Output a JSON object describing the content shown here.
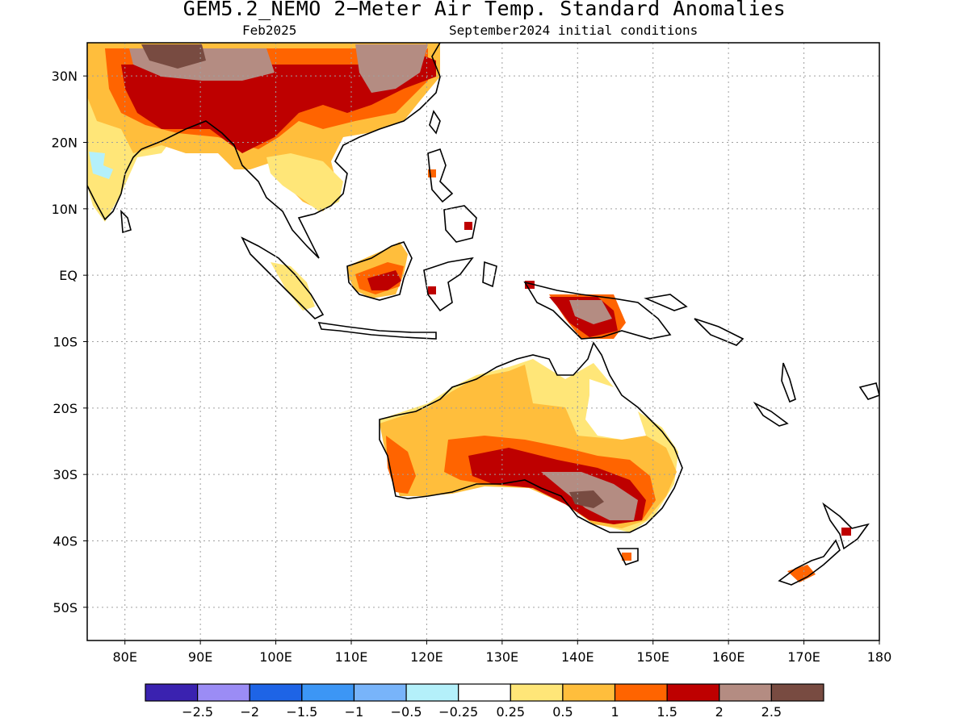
{
  "title": "GEM5.2_NEMO 2−Meter Air Temp. Standard Anomalies",
  "subtitle_left": "Feb2025",
  "subtitle_right": "September2024 initial conditions",
  "map": {
    "lon_range": [
      75,
      180
    ],
    "lat_range": [
      -55,
      35
    ],
    "grid": "dotted",
    "lon_ticks": [
      {
        "lon": 80,
        "label": "80E"
      },
      {
        "lon": 90,
        "label": "90E"
      },
      {
        "lon": 100,
        "label": "100E"
      },
      {
        "lon": 110,
        "label": "110E"
      },
      {
        "lon": 120,
        "label": "120E"
      },
      {
        "lon": 130,
        "label": "130E"
      },
      {
        "lon": 140,
        "label": "140E"
      },
      {
        "lon": 150,
        "label": "150E"
      },
      {
        "lon": 160,
        "label": "160E"
      },
      {
        "lon": 170,
        "label": "170E"
      },
      {
        "lon": 180,
        "label": "180"
      }
    ],
    "lat_ticks": [
      {
        "lat": 30,
        "label": "30N"
      },
      {
        "lat": 20,
        "label": "20N"
      },
      {
        "lat": 10,
        "label": "10N"
      },
      {
        "lat": 0,
        "label": "EQ"
      },
      {
        "lat": -10,
        "label": "10S"
      },
      {
        "lat": -20,
        "label": "20S"
      },
      {
        "lat": -30,
        "label": "30S"
      },
      {
        "lat": -40,
        "label": "40S"
      },
      {
        "lat": -50,
        "label": "50S"
      }
    ]
  },
  "colors": {
    "neg_2_5": "#3a22b0",
    "neg_2": "#9b8cf5",
    "neg_1_5": "#1e64e6",
    "neg_1": "#3c96f5",
    "neg_0_5": "#78b4fa",
    "neg_0_25": "#b4f0fa",
    "neutral": "#ffffff",
    "pos_0_25": "#ffe678",
    "pos_0_5": "#ffbe3c",
    "pos_1": "#ff6400",
    "pos_1_5": "#be0000",
    "pos_2": "#b48c82",
    "pos_2_5": "#784b41"
  },
  "colorbar": {
    "swatches": [
      "#3a22b0",
      "#9b8cf5",
      "#1e64e6",
      "#3c96f5",
      "#78b4fa",
      "#b4f0fa",
      "#ffffff",
      "#ffe678",
      "#ffbe3c",
      "#ff6400",
      "#be0000",
      "#b48c82",
      "#784b41"
    ],
    "labels": [
      "−2.5",
      "−2",
      "−1.5",
      "−1",
      "−0.5",
      "−0.25",
      "0.25",
      "0.5",
      "1",
      "1.5",
      "2",
      "2.5"
    ]
  }
}
